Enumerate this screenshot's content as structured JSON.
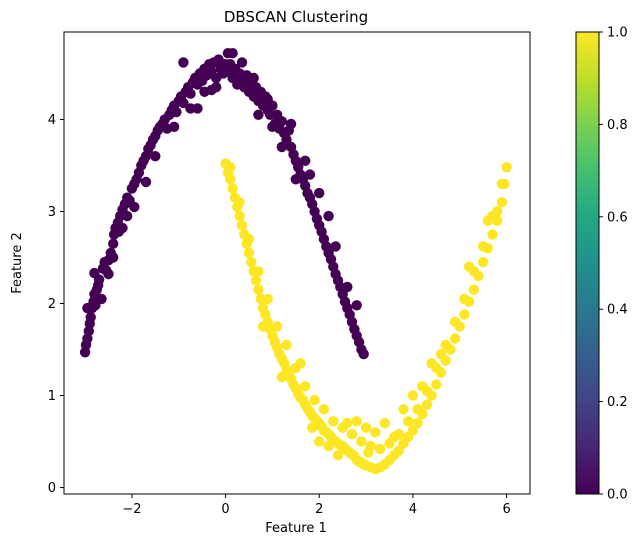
{
  "chart_data": {
    "type": "scatter",
    "title": "DBSCAN Clustering",
    "xlabel": "Feature 1",
    "ylabel": "Feature 2",
    "xlim": [
      -3.45,
      6.5
    ],
    "ylim": [
      -0.07,
      4.95
    ],
    "xticks": [
      -2,
      0,
      2,
      4,
      6
    ],
    "xtick_labels": [
      "−2",
      "0",
      "2",
      "4",
      "6"
    ],
    "yticks": [
      0,
      1,
      2,
      3,
      4
    ],
    "yticks_labels": [
      "0",
      "1",
      "2",
      "3",
      "4"
    ],
    "colorbar": {
      "colormap": "viridis",
      "range": [
        0.0,
        1.0
      ],
      "ticks": [
        0.0,
        0.2,
        0.4,
        0.6,
        0.8,
        1.0
      ],
      "tick_labels": [
        "0.0",
        "0.2",
        "0.4",
        "0.6",
        "0.8",
        "1.0"
      ]
    },
    "grid": false,
    "series": [
      {
        "label_value": 0,
        "color": "#440154",
        "points": [
          [
            -3.0,
            1.47
          ],
          [
            -2.98,
            1.55
          ],
          [
            -2.95,
            1.62
          ],
          [
            -2.92,
            1.7
          ],
          [
            -2.9,
            1.78
          ],
          [
            -2.88,
            1.85
          ],
          [
            -2.85,
            1.95
          ],
          [
            -2.82,
            2.02
          ],
          [
            -2.8,
            2.1
          ],
          [
            -2.78,
            1.98
          ],
          [
            -2.75,
            2.15
          ],
          [
            -2.72,
            2.2
          ],
          [
            -2.7,
            2.26
          ],
          [
            -2.8,
            2.33
          ],
          [
            -2.62,
            2.38
          ],
          [
            -2.58,
            2.45
          ],
          [
            -2.55,
            2.36
          ],
          [
            -2.5,
            2.47
          ],
          [
            -2.45,
            2.55
          ],
          [
            -2.4,
            2.65
          ],
          [
            -2.38,
            2.75
          ],
          [
            -2.35,
            2.82
          ],
          [
            -2.3,
            2.88
          ],
          [
            -2.28,
            2.78
          ],
          [
            -2.25,
            2.95
          ],
          [
            -2.2,
            3.02
          ],
          [
            -2.15,
            3.08
          ],
          [
            -2.1,
            3.15
          ],
          [
            -2.05,
            3.12
          ],
          [
            -2.0,
            3.25
          ],
          [
            -1.95,
            3.3
          ],
          [
            -1.9,
            3.35
          ],
          [
            -1.85,
            3.42
          ],
          [
            -1.8,
            3.5
          ],
          [
            -1.75,
            3.55
          ],
          [
            -1.7,
            3.6
          ],
          [
            -1.65,
            3.68
          ],
          [
            -1.6,
            3.72
          ],
          [
            -1.55,
            3.78
          ],
          [
            -1.5,
            3.82
          ],
          [
            -1.45,
            3.88
          ],
          [
            -1.4,
            3.92
          ],
          [
            -1.35,
            3.95
          ],
          [
            -1.3,
            4.0
          ],
          [
            -1.25,
            3.9
          ],
          [
            -1.2,
            4.05
          ],
          [
            -1.15,
            4.1
          ],
          [
            -1.1,
            4.15
          ],
          [
            -1.05,
            4.08
          ],
          [
            -1.0,
            4.2
          ],
          [
            -0.95,
            4.25
          ],
          [
            -0.9,
            4.18
          ],
          [
            -0.85,
            4.3
          ],
          [
            -0.8,
            4.35
          ],
          [
            -0.75,
            4.28
          ],
          [
            -0.7,
            4.4
          ],
          [
            -0.65,
            4.45
          ],
          [
            -0.6,
            4.38
          ],
          [
            -0.55,
            4.5
          ],
          [
            -0.5,
            4.42
          ],
          [
            -0.45,
            4.55
          ],
          [
            -0.4,
            4.48
          ],
          [
            -0.35,
            4.6
          ],
          [
            -0.3,
            4.52
          ],
          [
            -0.25,
            4.62
          ],
          [
            -0.2,
            4.45
          ],
          [
            -0.15,
            4.65
          ],
          [
            -0.1,
            4.55
          ],
          [
            -0.05,
            4.5
          ],
          [
            0.0,
            4.6
          ],
          [
            0.05,
            4.52
          ],
          [
            0.1,
            4.6
          ],
          [
            0.15,
            4.45
          ],
          [
            0.2,
            4.55
          ],
          [
            0.25,
            4.38
          ],
          [
            0.3,
            4.5
          ],
          [
            0.35,
            4.42
          ],
          [
            0.4,
            4.35
          ],
          [
            0.45,
            4.48
          ],
          [
            0.5,
            4.3
          ],
          [
            0.55,
            4.4
          ],
          [
            0.6,
            4.25
          ],
          [
            0.65,
            4.35
          ],
          [
            0.7,
            4.2
          ],
          [
            0.75,
            4.3
          ],
          [
            0.8,
            4.15
          ],
          [
            0.85,
            4.25
          ],
          [
            0.9,
            4.1
          ],
          [
            0.95,
            4.05
          ],
          [
            1.0,
            4.15
          ],
          [
            1.05,
            3.95
          ],
          [
            1.1,
            4.05
          ],
          [
            1.15,
            3.9
          ],
          [
            1.2,
            3.98
          ],
          [
            1.25,
            3.85
          ],
          [
            1.3,
            3.78
          ],
          [
            1.35,
            3.88
          ],
          [
            1.4,
            3.7
          ],
          [
            1.45,
            3.62
          ],
          [
            1.5,
            3.55
          ],
          [
            1.55,
            3.48
          ],
          [
            1.6,
            3.4
          ],
          [
            1.65,
            3.35
          ],
          [
            1.7,
            3.28
          ],
          [
            1.75,
            3.2
          ],
          [
            1.8,
            3.15
          ],
          [
            1.85,
            3.08
          ],
          [
            1.9,
            3.0
          ],
          [
            1.95,
            2.92
          ],
          [
            2.0,
            2.85
          ],
          [
            2.05,
            2.78
          ],
          [
            2.1,
            2.7
          ],
          [
            2.15,
            2.62
          ],
          [
            2.2,
            2.55
          ],
          [
            2.25,
            2.48
          ],
          [
            2.3,
            2.4
          ],
          [
            2.35,
            2.32
          ],
          [
            2.4,
            2.25
          ],
          [
            2.45,
            2.18
          ],
          [
            2.5,
            2.1
          ],
          [
            2.55,
            2.02
          ],
          [
            2.6,
            1.95
          ],
          [
            2.65,
            1.88
          ],
          [
            2.7,
            1.8
          ],
          [
            2.75,
            1.72
          ],
          [
            2.8,
            1.65
          ],
          [
            2.85,
            1.58
          ],
          [
            2.9,
            1.5
          ],
          [
            2.95,
            1.45
          ],
          [
            -0.9,
            4.62
          ],
          [
            -0.6,
            4.12
          ],
          [
            -0.3,
            4.32
          ],
          [
            0.05,
            4.72
          ],
          [
            0.35,
            4.62
          ],
          [
            0.6,
            4.45
          ],
          [
            0.9,
            4.22
          ],
          [
            1.2,
            3.7
          ],
          [
            1.5,
            3.35
          ],
          [
            1.8,
            3.4
          ],
          [
            2.2,
            2.95
          ],
          [
            -1.7,
            3.32
          ],
          [
            -2.2,
            2.82
          ],
          [
            -2.5,
            2.32
          ],
          [
            -2.1,
            2.95
          ],
          [
            -1.5,
            3.6
          ],
          [
            -1.1,
            3.92
          ],
          [
            -0.75,
            4.12
          ],
          [
            -0.45,
            4.3
          ],
          [
            -0.2,
            4.35
          ],
          [
            0.15,
            4.72
          ],
          [
            0.7,
            4.05
          ],
          [
            1.0,
            3.92
          ],
          [
            1.4,
            3.95
          ],
          [
            1.7,
            3.55
          ],
          [
            2.0,
            3.2
          ],
          [
            2.35,
            2.62
          ],
          [
            2.6,
            2.18
          ],
          [
            2.8,
            1.98
          ],
          [
            -2.95,
            1.95
          ],
          [
            -2.65,
            2.05
          ],
          [
            -2.4,
            2.5
          ],
          [
            -1.95,
            3.05
          ]
        ]
      },
      {
        "label_value": 1,
        "color": "#fde725",
        "points": [
          [
            0.0,
            3.52
          ],
          [
            0.05,
            3.42
          ],
          [
            0.1,
            3.35
          ],
          [
            0.15,
            3.25
          ],
          [
            0.2,
            3.15
          ],
          [
            0.25,
            3.05
          ],
          [
            0.3,
            2.95
          ],
          [
            0.35,
            2.85
          ],
          [
            0.4,
            2.75
          ],
          [
            0.45,
            2.65
          ],
          [
            0.5,
            2.55
          ],
          [
            0.55,
            2.45
          ],
          [
            0.6,
            2.35
          ],
          [
            0.65,
            2.25
          ],
          [
            0.7,
            2.15
          ],
          [
            0.75,
            2.05
          ],
          [
            0.8,
            1.95
          ],
          [
            0.85,
            1.88
          ],
          [
            0.9,
            1.8
          ],
          [
            0.95,
            1.72
          ],
          [
            1.0,
            1.65
          ],
          [
            1.05,
            1.58
          ],
          [
            1.1,
            1.52
          ],
          [
            1.15,
            1.45
          ],
          [
            1.2,
            1.4
          ],
          [
            1.25,
            1.35
          ],
          [
            1.3,
            1.28
          ],
          [
            1.35,
            1.22
          ],
          [
            1.4,
            1.18
          ],
          [
            1.45,
            1.12
          ],
          [
            1.5,
            1.08
          ],
          [
            1.55,
            1.02
          ],
          [
            1.6,
            0.98
          ],
          [
            1.65,
            0.95
          ],
          [
            1.7,
            0.9
          ],
          [
            1.75,
            0.86
          ],
          [
            1.8,
            0.82
          ],
          [
            1.85,
            0.78
          ],
          [
            1.9,
            0.75
          ],
          [
            1.95,
            0.72
          ],
          [
            2.0,
            0.7
          ],
          [
            2.05,
            0.66
          ],
          [
            2.1,
            0.62
          ],
          [
            2.15,
            0.6
          ],
          [
            2.2,
            0.58
          ],
          [
            2.25,
            0.55
          ],
          [
            2.3,
            0.52
          ],
          [
            2.35,
            0.5
          ],
          [
            2.4,
            0.48
          ],
          [
            2.45,
            0.46
          ],
          [
            2.5,
            0.45
          ],
          [
            2.55,
            0.42
          ],
          [
            2.6,
            0.4
          ],
          [
            2.65,
            0.38
          ],
          [
            2.7,
            0.36
          ],
          [
            2.75,
            0.34
          ],
          [
            2.8,
            0.3
          ],
          [
            2.85,
            0.28
          ],
          [
            2.9,
            0.27
          ],
          [
            2.95,
            0.25
          ],
          [
            3.0,
            0.24
          ],
          [
            3.1,
            0.22
          ],
          [
            3.2,
            0.2
          ],
          [
            3.3,
            0.22
          ],
          [
            3.4,
            0.25
          ],
          [
            3.5,
            0.3
          ],
          [
            3.6,
            0.35
          ],
          [
            3.7,
            0.4
          ],
          [
            3.8,
            0.48
          ],
          [
            3.9,
            0.55
          ],
          [
            4.0,
            0.62
          ],
          [
            4.1,
            0.7
          ],
          [
            4.2,
            0.8
          ],
          [
            4.3,
            0.9
          ],
          [
            4.4,
            1.0
          ],
          [
            4.5,
            1.12
          ],
          [
            4.6,
            1.25
          ],
          [
            4.7,
            1.38
          ],
          [
            4.8,
            1.5
          ],
          [
            4.9,
            1.62
          ],
          [
            5.0,
            1.75
          ],
          [
            5.1,
            1.88
          ],
          [
            5.2,
            2.02
          ],
          [
            5.3,
            2.15
          ],
          [
            5.4,
            2.3
          ],
          [
            5.5,
            2.45
          ],
          [
            5.6,
            2.6
          ],
          [
            5.7,
            2.75
          ],
          [
            5.8,
            2.9
          ],
          [
            5.9,
            3.1
          ],
          [
            5.95,
            3.3
          ],
          [
            6.0,
            3.48
          ],
          [
            0.1,
            3.48
          ],
          [
            0.3,
            3.1
          ],
          [
            0.5,
            2.7
          ],
          [
            0.7,
            2.35
          ],
          [
            0.9,
            2.05
          ],
          [
            1.1,
            1.75
          ],
          [
            1.3,
            1.55
          ],
          [
            1.5,
            1.3
          ],
          [
            1.7,
            1.1
          ],
          [
            1.9,
            0.95
          ],
          [
            2.1,
            0.85
          ],
          [
            2.3,
            0.72
          ],
          [
            2.5,
            0.65
          ],
          [
            2.7,
            0.58
          ],
          [
            2.9,
            0.5
          ],
          [
            3.1,
            0.45
          ],
          [
            3.3,
            0.42
          ],
          [
            3.5,
            0.48
          ],
          [
            3.7,
            0.58
          ],
          [
            3.9,
            0.72
          ],
          [
            4.1,
            0.85
          ],
          [
            4.3,
            1.05
          ],
          [
            4.5,
            1.3
          ],
          [
            4.7,
            1.55
          ],
          [
            4.9,
            1.8
          ],
          [
            5.1,
            2.05
          ],
          [
            5.3,
            2.35
          ],
          [
            5.5,
            2.62
          ],
          [
            5.7,
            2.95
          ],
          [
            5.9,
            3.3
          ],
          [
            2.0,
            0.5
          ],
          [
            2.4,
            0.35
          ],
          [
            2.8,
            0.72
          ],
          [
            3.2,
            0.6
          ],
          [
            3.6,
            0.55
          ],
          [
            4.0,
            1.0
          ],
          [
            4.4,
            1.35
          ],
          [
            1.6,
            1.35
          ],
          [
            1.2,
            1.2
          ],
          [
            0.8,
            1.75
          ],
          [
            2.6,
            0.7
          ],
          [
            3.0,
            0.65
          ],
          [
            3.4,
            0.7
          ],
          [
            3.8,
            0.85
          ],
          [
            4.2,
            1.1
          ],
          [
            4.6,
            1.45
          ],
          [
            5.2,
            2.4
          ],
          [
            5.6,
            2.9
          ],
          [
            5.8,
            3.0
          ],
          [
            1.85,
            0.65
          ],
          [
            2.2,
            0.45
          ],
          [
            3.05,
            0.38
          ]
        ]
      }
    ]
  }
}
